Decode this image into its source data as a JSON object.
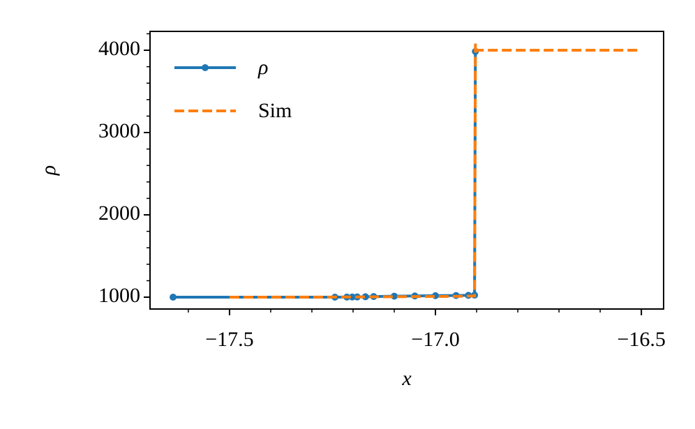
{
  "chart_data": {
    "type": "line",
    "xlabel": "x",
    "ylabel": "ρ",
    "xlim": [
      -17.693,
      -16.446
    ],
    "ylim": [
      856,
      4229
    ],
    "xticks": [
      {
        "value": -17.5,
        "label": "−17.5"
      },
      {
        "value": -17.0,
        "label": "−17.0"
      },
      {
        "value": -16.5,
        "label": "−16.5"
      }
    ],
    "yticks": [
      1000,
      2000,
      3000,
      4000
    ],
    "xminorticks": [
      -17.6,
      -17.4,
      -17.3,
      -17.2,
      -17.1,
      -16.9,
      -16.8,
      -16.7,
      -16.6
    ],
    "yminorticks": [
      1200,
      1400,
      1600,
      1800,
      2200,
      2400,
      2600,
      2800,
      3200,
      3400,
      3600,
      3800,
      4200
    ],
    "legend": "upper left",
    "series": [
      {
        "name": "ρ",
        "color": "#1f77b4",
        "linestyle": "solid",
        "marker": true,
        "x": [
          -17.637,
          -17.244,
          -17.215,
          -17.202,
          -17.19,
          -17.17,
          -17.15,
          -17.1,
          -17.05,
          -17.0,
          -16.95,
          -16.92,
          -16.905,
          -16.903
        ],
        "values": [
          1000,
          1000,
          1001,
          1002,
          1003,
          1005,
          1008,
          1012,
          1015,
          1018,
          1020,
          1022,
          1025,
          3985
        ]
      },
      {
        "name": "Sim",
        "color": "#ff7f0e",
        "linestyle": "dashed",
        "marker": false,
        "x": [
          -17.5,
          -17.2,
          -16.95,
          -16.905,
          -16.903,
          -16.9,
          -16.895,
          -16.5
        ],
        "values": [
          1000,
          1002,
          1010,
          1015,
          4080,
          3990,
          4000,
          4000
        ]
      }
    ]
  }
}
